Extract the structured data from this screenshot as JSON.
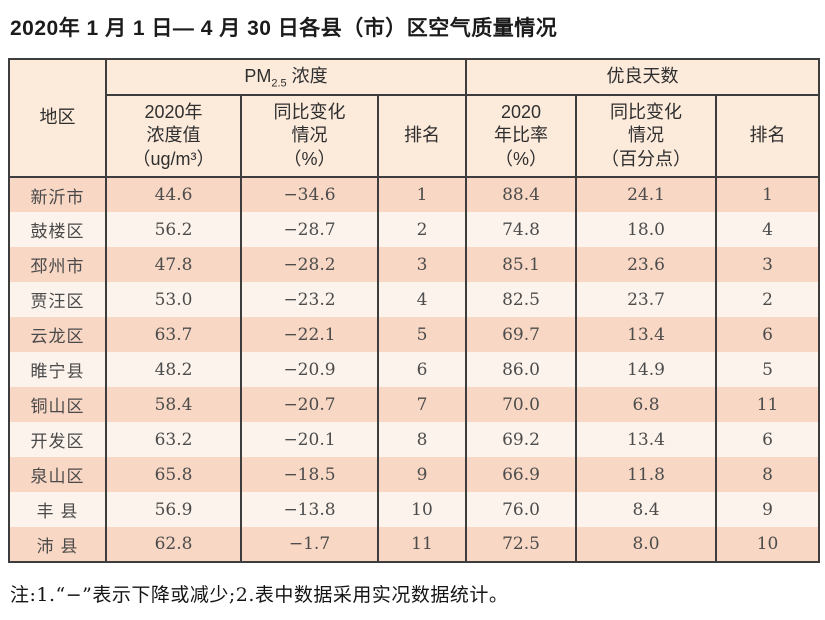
{
  "title": "2020年 1 月 1 日— 4 月 30 日各县（市）区空气质量情况",
  "table": {
    "region_header": "地区",
    "pm_group": {
      "prefix": "PM",
      "sub": "2.5",
      "suffix": " 浓度"
    },
    "good_group_label": "优良天数",
    "subheaders": [
      "2020年\n浓度值\n（ug/m³）",
      "同比变化\n情况\n（%）",
      "排名",
      "2020\n年比率\n（%）",
      "同比变化\n情况\n（百分点）",
      "排名"
    ],
    "rows": [
      {
        "region": "新沂市",
        "pm_value": "44.6",
        "pm_change": "−34.6",
        "pm_rank": "1",
        "good_rate": "88.4",
        "good_change": "24.1",
        "good_rank": "1"
      },
      {
        "region": "鼓楼区",
        "pm_value": "56.2",
        "pm_change": "−28.7",
        "pm_rank": "2",
        "good_rate": "74.8",
        "good_change": "18.0",
        "good_rank": "4"
      },
      {
        "region": "邳州市",
        "pm_value": "47.8",
        "pm_change": "−28.2",
        "pm_rank": "3",
        "good_rate": "85.1",
        "good_change": "23.6",
        "good_rank": "3"
      },
      {
        "region": "贾汪区",
        "pm_value": "53.0",
        "pm_change": "−23.2",
        "pm_rank": "4",
        "good_rate": "82.5",
        "good_change": "23.7",
        "good_rank": "2"
      },
      {
        "region": "云龙区",
        "pm_value": "63.7",
        "pm_change": "−22.1",
        "pm_rank": "5",
        "good_rate": "69.7",
        "good_change": "13.4",
        "good_rank": "6"
      },
      {
        "region": "睢宁县",
        "pm_value": "48.2",
        "pm_change": "−20.9",
        "pm_rank": "6",
        "good_rate": "86.0",
        "good_change": "14.9",
        "good_rank": "5"
      },
      {
        "region": "铜山区",
        "pm_value": "58.4",
        "pm_change": "−20.7",
        "pm_rank": "7",
        "good_rate": "70.0",
        "good_change": "6.8",
        "good_rank": "11"
      },
      {
        "region": "开发区",
        "pm_value": "63.2",
        "pm_change": "−20.1",
        "pm_rank": "8",
        "good_rate": "69.2",
        "good_change": "13.4",
        "good_rank": "6"
      },
      {
        "region": "泉山区",
        "pm_value": "65.8",
        "pm_change": "−18.5",
        "pm_rank": "9",
        "good_rate": "66.9",
        "good_change": "11.8",
        "good_rank": "8"
      },
      {
        "region": "丰 县",
        "pm_value": "56.9",
        "pm_change": "−13.8",
        "pm_rank": "10",
        "good_rate": "76.0",
        "good_change": "8.4",
        "good_rank": "9"
      },
      {
        "region": "沛 县",
        "pm_value": "62.8",
        "pm_change": "−1.7",
        "pm_rank": "11",
        "good_rate": "72.5",
        "good_change": "8.0",
        "good_rank": "10"
      }
    ]
  },
  "note": "注:1.“−”表示下降或减少;2.表中数据采用实况数据统计。",
  "colors": {
    "header_bg": "#fceadb",
    "row_pink": "#f8d7c4",
    "row_light": "#fcf3ec",
    "border": "#3d3d3d"
  }
}
